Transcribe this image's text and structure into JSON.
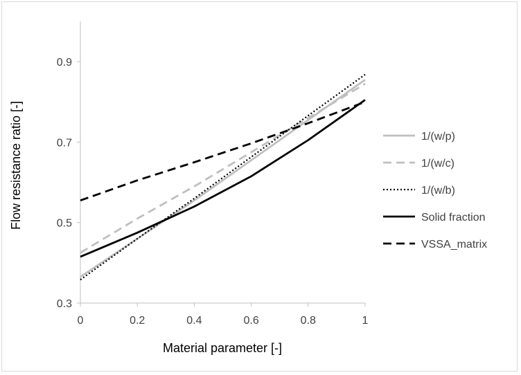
{
  "chart_data": {
    "type": "line",
    "title": "",
    "xlabel": "Material parameter [-]",
    "ylabel": "Flow resistance ratio [-]",
    "xlim": [
      0,
      1
    ],
    "ylim": [
      0.3,
      1.0
    ],
    "x_ticks": [
      "0",
      "0.2",
      "0.4",
      "0.6",
      "0.8",
      "1"
    ],
    "y_ticks": [
      "0.3",
      "0.5",
      "0.7",
      "0.9"
    ],
    "grid": false,
    "legend_position": "right",
    "series": [
      {
        "name": "1/(w/p)",
        "color": "#bfbfbf",
        "dash": "solid",
        "x": [
          0,
          0.2,
          0.4,
          0.6,
          0.8,
          1
        ],
        "y": [
          0.365,
          0.46,
          0.555,
          0.655,
          0.755,
          0.855
        ]
      },
      {
        "name": "1/(w/c)",
        "color": "#bfbfbf",
        "dash": "dashed",
        "x": [
          0,
          0.2,
          0.4,
          0.6,
          0.8,
          1
        ],
        "y": [
          0.425,
          0.51,
          0.59,
          0.675,
          0.76,
          0.845
        ]
      },
      {
        "name": "1/(w/b)",
        "color": "#000000",
        "dash": "dotted",
        "x": [
          0,
          0.2,
          0.4,
          0.6,
          0.8,
          1
        ],
        "y": [
          0.358,
          0.46,
          0.56,
          0.663,
          0.766,
          0.868
        ]
      },
      {
        "name": "Solid fraction",
        "color": "#000000",
        "dash": "solid",
        "x": [
          0,
          0.2,
          0.4,
          0.6,
          0.8,
          1
        ],
        "y": [
          0.415,
          0.475,
          0.54,
          0.615,
          0.705,
          0.805
        ]
      },
      {
        "name": "VSSA_matrix",
        "color": "#000000",
        "dash": "dashed",
        "x": [
          0,
          0.2,
          0.4,
          0.6,
          0.8,
          1
        ],
        "y": [
          0.555,
          0.605,
          0.65,
          0.697,
          0.747,
          0.8
        ]
      }
    ]
  }
}
